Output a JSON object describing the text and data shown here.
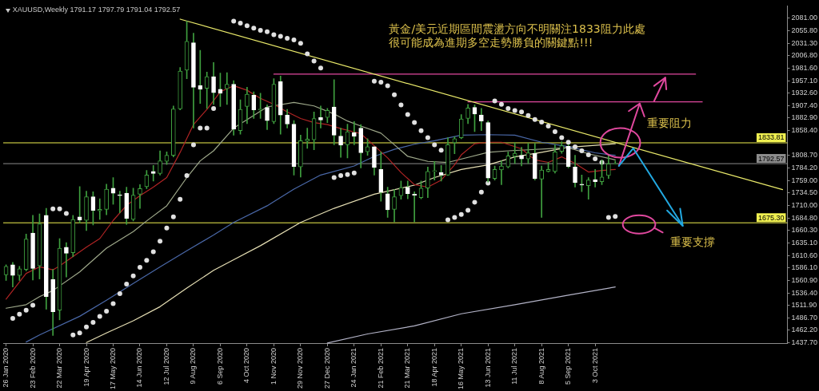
{
  "chart_data": {
    "type": "candlestick",
    "title": "XAUUSD,Weekly 1791.17 1797.79 1791.04 1792.57",
    "x": [
      "2020-01-26",
      "2020-02-02",
      "2020-02-09",
      "2020-02-16",
      "2020-02-23",
      "2020-03-01",
      "2020-03-08",
      "2020-03-15",
      "2020-03-22",
      "2020-03-29",
      "2020-04-05",
      "2020-04-12",
      "2020-04-19",
      "2020-04-26",
      "2020-05-03",
      "2020-05-10",
      "2020-05-17",
      "2020-05-24",
      "2020-05-31",
      "2020-06-07",
      "2020-06-14",
      "2020-06-21",
      "2020-06-28",
      "2020-07-05",
      "2020-07-12",
      "2020-07-19",
      "2020-07-26",
      "2020-08-02",
      "2020-08-09",
      "2020-08-16",
      "2020-08-23",
      "2020-08-30",
      "2020-09-06",
      "2020-09-13",
      "2020-09-20",
      "2020-09-27",
      "2020-10-04",
      "2020-10-11",
      "2020-10-18",
      "2020-10-25",
      "2020-11-01",
      "2020-11-08",
      "2020-11-15",
      "2020-11-22",
      "2020-11-29",
      "2020-12-06",
      "2020-12-13",
      "2020-12-20",
      "2020-12-27",
      "2021-01-03",
      "2021-01-10",
      "2021-01-17",
      "2021-01-24",
      "2021-01-31",
      "2021-02-07",
      "2021-02-14",
      "2021-02-21",
      "2021-02-28",
      "2021-03-07",
      "2021-03-14",
      "2021-03-21",
      "2021-03-28",
      "2021-04-04",
      "2021-04-11",
      "2021-04-18",
      "2021-04-25",
      "2021-05-02",
      "2021-05-09",
      "2021-05-16",
      "2021-05-23",
      "2021-05-30",
      "2021-06-06",
      "2021-06-13",
      "2021-06-20",
      "2021-06-27",
      "2021-07-04",
      "2021-07-11",
      "2021-07-18",
      "2021-07-25",
      "2021-08-01",
      "2021-08-08",
      "2021-08-15",
      "2021-08-22",
      "2021-08-29",
      "2021-09-05",
      "2021-09-12",
      "2021-09-19",
      "2021-09-26",
      "2021-10-03",
      "2021-10-10",
      "2021-10-17",
      "2021-10-24"
    ],
    "ohlc": [
      [
        1572,
        1592,
        1561,
        1589
      ],
      [
        1592,
        1597,
        1548,
        1571
      ],
      [
        1571,
        1589,
        1561,
        1584
      ],
      [
        1583,
        1653,
        1580,
        1643
      ],
      [
        1655,
        1690,
        1562,
        1585
      ],
      [
        1590,
        1693,
        1564,
        1673
      ],
      [
        1690,
        1704,
        1504,
        1529
      ],
      [
        1563,
        1583,
        1452,
        1499
      ],
      [
        1502,
        1644,
        1483,
        1625
      ],
      [
        1627,
        1636,
        1568,
        1615
      ],
      [
        1616,
        1690,
        1608,
        1682
      ],
      [
        1687,
        1747,
        1675,
        1681
      ],
      [
        1680,
        1738,
        1660,
        1727
      ],
      [
        1727,
        1737,
        1671,
        1700
      ],
      [
        1699,
        1723,
        1682,
        1702
      ],
      [
        1702,
        1752,
        1691,
        1742
      ],
      [
        1744,
        1765,
        1712,
        1734
      ],
      [
        1731,
        1738,
        1695,
        1729
      ],
      [
        1734,
        1746,
        1672,
        1684
      ],
      [
        1682,
        1744,
        1679,
        1730
      ],
      [
        1732,
        1751,
        1704,
        1743
      ],
      [
        1747,
        1779,
        1743,
        1770
      ],
      [
        1777,
        1789,
        1758,
        1773
      ],
      [
        1773,
        1818,
        1770,
        1798
      ],
      [
        1797,
        1816,
        1791,
        1809
      ],
      [
        1809,
        1907,
        1806,
        1901
      ],
      [
        1901,
        1983,
        1899,
        1976
      ],
      [
        1978,
        2075,
        1961,
        2035
      ],
      [
        2032,
        2051,
        1863,
        1944
      ],
      [
        1947,
        2017,
        1912,
        1940
      ],
      [
        1942,
        1974,
        1902,
        1965
      ],
      [
        1965,
        1993,
        1910,
        1933
      ],
      [
        1940,
        1972,
        1906,
        1932
      ],
      [
        1941,
        1973,
        1910,
        1950
      ],
      [
        1950,
        1957,
        1849,
        1861
      ],
      [
        1858,
        1919,
        1851,
        1900
      ],
      [
        1906,
        1944,
        1872,
        1930
      ],
      [
        1928,
        1935,
        1882,
        1899
      ],
      [
        1899,
        1932,
        1882,
        1901
      ],
      [
        1904,
        1909,
        1860,
        1878
      ],
      [
        1876,
        1961,
        1872,
        1950
      ],
      [
        1955,
        1966,
        1851,
        1889
      ],
      [
        1889,
        1900,
        1863,
        1871
      ],
      [
        1871,
        1878,
        1770,
        1787
      ],
      [
        1786,
        1849,
        1766,
        1838
      ],
      [
        1837,
        1863,
        1823,
        1841
      ],
      [
        1840,
        1895,
        1820,
        1882
      ],
      [
        1884,
        1907,
        1863,
        1879
      ],
      [
        1884,
        1902,
        1874,
        1898
      ],
      [
        1905,
        1959,
        1830,
        1849
      ],
      [
        1847,
        1863,
        1805,
        1829
      ],
      [
        1830,
        1871,
        1804,
        1856
      ],
      [
        1854,
        1876,
        1830,
        1847
      ],
      [
        1863,
        1870,
        1784,
        1814
      ],
      [
        1816,
        1842,
        1809,
        1826
      ],
      [
        1826,
        1826,
        1770,
        1785
      ],
      [
        1781,
        1816,
        1718,
        1736
      ],
      [
        1733,
        1746,
        1686,
        1701
      ],
      [
        1702,
        1741,
        1677,
        1727
      ],
      [
        1729,
        1758,
        1722,
        1745
      ],
      [
        1746,
        1758,
        1723,
        1733
      ],
      [
        1732,
        1737,
        1677,
        1730
      ],
      [
        1725,
        1758,
        1723,
        1744
      ],
      [
        1744,
        1786,
        1725,
        1777
      ],
      [
        1777,
        1797,
        1760,
        1778
      ],
      [
        1775,
        1789,
        1758,
        1770
      ],
      [
        1770,
        1844,
        1769,
        1830
      ],
      [
        1834,
        1846,
        1812,
        1842
      ],
      [
        1844,
        1890,
        1842,
        1881
      ],
      [
        1882,
        1910,
        1872,
        1903
      ],
      [
        1904,
        1909,
        1856,
        1891
      ],
      [
        1889,
        1902,
        1858,
        1877
      ],
      [
        1874,
        1877,
        1756,
        1764
      ],
      [
        1763,
        1788,
        1760,
        1781
      ],
      [
        1780,
        1798,
        1751,
        1788
      ],
      [
        1786,
        1816,
        1784,
        1808
      ],
      [
        1807,
        1834,
        1793,
        1813
      ],
      [
        1809,
        1825,
        1788,
        1802
      ],
      [
        1802,
        1833,
        1793,
        1814
      ],
      [
        1813,
        1833,
        1760,
        1763
      ],
      [
        1762,
        1788,
        1686,
        1780
      ],
      [
        1777,
        1795,
        1776,
        1781
      ],
      [
        1777,
        1830,
        1774,
        1816
      ],
      [
        1817,
        1836,
        1813,
        1828
      ],
      [
        1827,
        1830,
        1784,
        1787
      ],
      [
        1786,
        1809,
        1746,
        1755
      ],
      [
        1752,
        1770,
        1737,
        1750
      ],
      [
        1749,
        1765,
        1722,
        1760
      ],
      [
        1761,
        1781,
        1746,
        1757
      ],
      [
        1757,
        1800,
        1751,
        1766
      ],
      [
        1769,
        1809,
        1763,
        1792
      ],
      [
        1791.17,
        1797.79,
        1791.04,
        1792.57
      ]
    ],
    "color": "#3f9f3f",
    "colors": [
      "#3f9f3f",
      "#ffffff",
      "#3f9f3f",
      "#3f9f3f",
      "#ffffff",
      "#3f9f3f",
      "#ffffff",
      "#ffffff",
      "#3f9f3f",
      "#ffffff",
      "#3f9f3f",
      "#ffffff",
      "#3f9f3f",
      "#ffffff",
      "#3f9f3f",
      "#3f9f3f",
      "#ffffff",
      "#ffffff",
      "#ffffff",
      "#3f9f3f",
      "#3f9f3f",
      "#3f9f3f",
      "#ffffff",
      "#3f9f3f",
      "#3f9f3f",
      "#3f9f3f",
      "#3f9f3f",
      "#3f9f3f",
      "#ffffff",
      "#ffffff",
      "#3f9f3f",
      "#ffffff",
      "#ffffff",
      "#3f9f3f",
      "#ffffff",
      "#3f9f3f",
      "#3f9f3f",
      "#ffffff",
      "#3f9f3f",
      "#ffffff",
      "#3f9f3f",
      "#ffffff",
      "#ffffff",
      "#ffffff",
      "#3f9f3f",
      "#3f9f3f",
      "#3f9f3f",
      "#ffffff",
      "#3f9f3f",
      "#ffffff",
      "#ffffff",
      "#3f9f3f",
      "#ffffff",
      "#ffffff",
      "#3f9f3f",
      "#ffffff",
      "#ffffff",
      "#ffffff",
      "#3f9f3f",
      "#3f9f3f",
      "#ffffff",
      "#ffffff",
      "#3f9f3f",
      "#3f9f3f",
      "#3f9f3f",
      "#ffffff",
      "#3f9f3f",
      "#3f9f3f",
      "#3f9f3f",
      "#3f9f3f",
      "#ffffff",
      "#ffffff",
      "#ffffff",
      "#3f9f3f",
      "#3f9f3f",
      "#3f9f3f",
      "#3f9f3f",
      "#ffffff",
      "#3f9f3f",
      "#ffffff",
      "#3f9f3f",
      "#3f9f3f",
      "#3f9f3f",
      "#3f9f3f",
      "#ffffff",
      "#ffffff",
      "#ffffff",
      "#3f9f3f",
      "#ffffff",
      "#3f9f3f",
      "#3f9f3f",
      "#3f9f3f"
    ],
    "series": [
      {
        "type": "line",
        "color": "#b02424",
        "x": [
          "2020-01-26",
          "2020-02-16",
          "2020-03-01",
          "2020-03-15",
          "2020-03-22",
          "2020-04-19",
          "2020-05-03",
          "2020-05-17",
          "2020-05-31",
          "2020-06-14",
          "2020-06-28",
          "2020-07-12",
          "2020-07-26",
          "2020-08-09",
          "2020-08-23",
          "2020-09-06",
          "2020-09-20",
          "2020-10-04",
          "2020-10-18",
          "2020-11-01",
          "2020-11-15",
          "2020-11-29",
          "2020-12-13",
          "2020-12-27",
          "2021-01-10",
          "2021-01-31",
          "2021-02-14",
          "2021-02-28",
          "2021-03-14",
          "2021-03-28",
          "2021-04-11",
          "2021-04-25",
          "2021-05-09",
          "2021-05-16",
          "2021-05-30",
          "2021-06-13",
          "2021-06-27",
          "2021-07-18",
          "2021-08-01",
          "2021-08-15",
          "2021-08-29",
          "2021-09-12",
          "2021-09-26",
          "2021-10-10",
          "2021-10-24"
        ],
        "values": [
          1524,
          1575,
          1588,
          1582,
          1590,
          1627,
          1644,
          1680,
          1710,
          1729,
          1746,
          1765,
          1815,
          1870,
          1900,
          1935,
          1947,
          1938,
          1922,
          1910,
          1895,
          1882,
          1874,
          1870,
          1862,
          1852,
          1828,
          1804,
          1775,
          1751,
          1746,
          1760,
          1790,
          1810,
          1832,
          1835,
          1835,
          1822,
          1800,
          1795,
          1806,
          1793,
          1776,
          1779,
          1781
        ]
      },
      {
        "type": "line",
        "color": "#9ea88a",
        "x": [
          "2020-01-26",
          "2020-02-16",
          "2020-03-01",
          "2020-03-15",
          "2020-04-12",
          "2020-05-10",
          "2020-06-07",
          "2020-06-21",
          "2020-07-12",
          "2020-08-02",
          "2020-08-16",
          "2020-08-30",
          "2020-09-20",
          "2020-10-25",
          "2020-11-22",
          "2020-12-13",
          "2021-01-03",
          "2021-01-17",
          "2021-01-31",
          "2021-02-21",
          "2021-03-07",
          "2021-03-21",
          "2021-04-11",
          "2021-05-02",
          "2021-05-23",
          "2021-06-13",
          "2021-07-04",
          "2021-07-25",
          "2021-08-15",
          "2021-09-05",
          "2021-09-26",
          "2021-10-24"
        ],
        "values": [
          1506,
          1513,
          1529,
          1541,
          1578,
          1625,
          1658,
          1679,
          1709,
          1765,
          1798,
          1818,
          1863,
          1905,
          1914,
          1907,
          1891,
          1877,
          1867,
          1853,
          1830,
          1807,
          1797,
          1795,
          1805,
          1815,
          1818,
          1820,
          1822,
          1824,
          1812,
          1800
        ]
      },
      {
        "type": "line",
        "color": "#4a68a8",
        "x": [
          "2020-02-16",
          "2020-03-01",
          "2020-04-12",
          "2020-05-10",
          "2020-06-07",
          "2020-07-05",
          "2020-08-02",
          "2020-08-30",
          "2020-09-20",
          "2020-10-25",
          "2020-11-22",
          "2020-12-20",
          "2021-01-24",
          "2021-02-14",
          "2021-03-07",
          "2021-03-28",
          "2021-04-18",
          "2021-05-16",
          "2021-06-13",
          "2021-07-11",
          "2021-08-08",
          "2021-09-05",
          "2021-10-03",
          "2021-10-24"
        ],
        "values": [
          1439,
          1453,
          1490,
          1522,
          1555,
          1588,
          1620,
          1651,
          1676,
          1709,
          1742,
          1770,
          1788,
          1807,
          1821,
          1831,
          1838,
          1849,
          1850,
          1849,
          1835,
          1826,
          1814,
          1809
        ]
      },
      {
        "type": "line",
        "color": "#e6dfb4",
        "x": [
          "2020-04-19",
          "2020-05-10",
          "2020-06-07",
          "2020-07-05",
          "2020-08-02",
          "2020-08-30",
          "2020-09-20",
          "2020-10-18",
          "2020-11-29",
          "2021-01-03",
          "2021-02-14",
          "2021-03-28",
          "2021-04-18",
          "2021-05-16",
          "2021-06-13",
          "2021-07-11",
          "2021-08-08",
          "2021-09-05",
          "2021-10-03",
          "2021-10-24"
        ],
        "values": [
          1438,
          1457,
          1481,
          1509,
          1546,
          1581,
          1602,
          1630,
          1676,
          1704,
          1732,
          1750,
          1765,
          1781,
          1790,
          1806,
          1815,
          1825,
          1829,
          1832
        ]
      },
      {
        "type": "line",
        "color": "#b4b4c8",
        "x": [
          "2020-12-27",
          "2021-02-07",
          "2021-03-28",
          "2021-05-16",
          "2021-07-11",
          "2021-09-05",
          "2021-10-24"
        ],
        "values": [
          1437,
          1455,
          1471,
          1495,
          1513,
          1532,
          1548
        ]
      },
      {
        "type": "scatter",
        "color": "#e0e0e0",
        "marker": "circle",
        "x": [
          "2020-02-02",
          "2020-02-09",
          "2020-02-16",
          "2020-02-23",
          "2020-03-15",
          "2020-03-22",
          "2020-03-29",
          "2020-04-05",
          "2020-04-12",
          "2020-04-19",
          "2020-04-26",
          "2020-05-03",
          "2020-05-10",
          "2020-05-17",
          "2020-05-24",
          "2020-05-31",
          "2020-06-07",
          "2020-06-14",
          "2020-06-21",
          "2020-06-28",
          "2020-07-05",
          "2020-07-12",
          "2020-07-19",
          "2020-07-26",
          "2020-08-02",
          "2020-08-09",
          "2020-08-16",
          "2020-08-23",
          "2020-08-30",
          "2020-09-20",
          "2020-09-27",
          "2020-10-04",
          "2020-10-11",
          "2020-10-18",
          "2020-10-25",
          "2020-11-01",
          "2020-11-08",
          "2020-11-15",
          "2020-11-22",
          "2020-11-29",
          "2020-12-06",
          "2020-12-13",
          "2020-12-20",
          "2021-01-03",
          "2021-01-10",
          "2021-01-17",
          "2021-01-24",
          "2021-02-14",
          "2021-02-21",
          "2021-02-28",
          "2021-03-07",
          "2021-03-14",
          "2021-03-21",
          "2021-03-28",
          "2021-04-04",
          "2021-04-11",
          "2021-04-18",
          "2021-04-25",
          "2021-05-02",
          "2021-05-09",
          "2021-05-16",
          "2021-05-23",
          "2021-05-30",
          "2021-06-06",
          "2021-06-13",
          "2021-06-20",
          "2021-06-27",
          "2021-07-04",
          "2021-07-11",
          "2021-07-18",
          "2021-07-25",
          "2021-08-01",
          "2021-08-08",
          "2021-08-15",
          "2021-08-22",
          "2021-08-29",
          "2021-09-05",
          "2021-09-12",
          "2021-09-19",
          "2021-09-26",
          "2021-10-03",
          "2021-10-10",
          "2021-10-17",
          "2021-10-24"
        ],
        "values": [
          1486,
          1494,
          1502,
          1512,
          1703,
          1703,
          1694,
          1453,
          1457,
          1469,
          1478,
          1490,
          1500,
          1515,
          1535,
          1554,
          1570,
          1587,
          1601,
          1618,
          1639,
          1665,
          1687,
          1722,
          1769,
          1830,
          1863,
          1863,
          1902,
          2075,
          2071,
          2066,
          2061,
          2057,
          2054,
          2048,
          2045,
          2041,
          2038,
          2031,
          2010,
          1996,
          1982,
          1765,
          1769,
          1771,
          1774,
          1956,
          1954,
          1947,
          1929,
          1909,
          1890,
          1874,
          1858,
          1844,
          1830,
          1819,
          1681,
          1686,
          1692,
          1700,
          1716,
          1736,
          1754,
          1917,
          1910,
          1902,
          1898,
          1895,
          1888,
          1880,
          1875,
          1867,
          1856,
          1844,
          1835,
          1826,
          1818,
          1810,
          1802,
          1795,
          1686,
          1688
        ]
      },
      {
        "type": "line",
        "color": "#eaea6a",
        "x": [
          "2020-07-26",
          "2022-04-17"
        ],
        "values": [
          2079,
          1741
        ]
      },
      {
        "type": "line",
        "color": "#e0489e",
        "x": [
          "2020-11-01",
          "2022-01-16"
        ],
        "values": [
          1970,
          1970
        ]
      },
      {
        "type": "line",
        "color": "#e0489e",
        "x": [
          "2021-05-23",
          "2022-01-23"
        ],
        "values": [
          1915,
          1915
        ]
      }
    ],
    "xlim": [
      "2020-01-23",
      "2022-04-22"
    ],
    "xticks": [
      {
        "value": "2020-01-26",
        "label": "26 Jan 2020"
      },
      {
        "value": "2020-02-23",
        "label": "23 Feb 2020"
      },
      {
        "value": "2020-03-22",
        "label": "22 Mar 2020"
      },
      {
        "value": "2020-04-19",
        "label": "19 Apr 2020"
      },
      {
        "value": "2020-05-17",
        "label": "17 May 2020"
      },
      {
        "value": "2020-06-14",
        "label": "14 Jun 2020"
      },
      {
        "value": "2020-07-12",
        "label": "12 Jul 2020"
      },
      {
        "value": "2020-08-09",
        "label": "9 Aug 2020"
      },
      {
        "value": "2020-09-06",
        "label": "6 Sep 2020"
      },
      {
        "value": "2020-10-04",
        "label": "4 Oct 2020"
      },
      {
        "value": "2020-11-01",
        "label": "1 Nov 2020"
      },
      {
        "value": "2020-11-29",
        "label": "29 Nov 2020"
      },
      {
        "value": "2020-12-27",
        "label": "27 Dec 2020"
      },
      {
        "value": "2021-01-24",
        "label": "24 Jan 2021"
      },
      {
        "value": "2021-02-21",
        "label": "21 Feb 2021"
      },
      {
        "value": "2021-03-21",
        "label": "21 Mar 2021"
      },
      {
        "value": "2021-04-18",
        "label": "18 Apr 2021"
      },
      {
        "value": "2021-05-16",
        "label": "16 May 2021"
      },
      {
        "value": "2021-06-13",
        "label": "13 Jun 2021"
      },
      {
        "value": "2021-07-11",
        "label": "11 Jul 2021"
      },
      {
        "value": "2021-08-08",
        "label": "8 Aug 2021"
      },
      {
        "value": "2021-09-05",
        "label": "5 Sep 2021"
      },
      {
        "value": "2021-10-03",
        "label": "3 Oct 2021"
      }
    ],
    "ylim": [
      1435.3,
      2105.2
    ],
    "yticks": [
      {
        "value": 2081,
        "label": "2081.00"
      },
      {
        "value": 2055.8,
        "label": "2055.80"
      },
      {
        "value": 2031.3,
        "label": "2031.30"
      },
      {
        "value": 2006.8,
        "label": "2006.80"
      },
      {
        "value": 1981.6,
        "label": "1981.60"
      },
      {
        "value": 1957.1,
        "label": "1957.10"
      },
      {
        "value": 1932.6,
        "label": "1932.60"
      },
      {
        "value": 1907.4,
        "label": "1907.40"
      },
      {
        "value": 1882.9,
        "label": "1882.90"
      },
      {
        "value": 1858.4,
        "label": "1858.40"
      },
      {
        "value": 1808.7,
        "label": "1808.70"
      },
      {
        "value": 1784.2,
        "label": "1784.20"
      },
      {
        "value": 1759,
        "label": "1759.00"
      },
      {
        "value": 1734.5,
        "label": "1734.50"
      },
      {
        "value": 1710,
        "label": "1710.00"
      },
      {
        "value": 1684.8,
        "label": "1684.80"
      },
      {
        "value": 1660.3,
        "label": "1660.30"
      },
      {
        "value": 1635.1,
        "label": "1635.10"
      },
      {
        "value": 1610.6,
        "label": "1610.60"
      },
      {
        "value": 1586.1,
        "label": "1586.10"
      },
      {
        "value": 1560.9,
        "label": "1560.90"
      },
      {
        "value": 1536.4,
        "label": "1536.40"
      },
      {
        "value": 1511.9,
        "label": "1511.90"
      },
      {
        "value": 1486.7,
        "label": "1486.70"
      },
      {
        "value": 1462.2,
        "label": "1462.20"
      },
      {
        "value": 1437.7,
        "label": "1437.70"
      }
    ],
    "ref_lines": [
      {
        "axis": "y",
        "value": 1833.81,
        "label": "1833.81",
        "color": "#f0f050"
      },
      {
        "axis": "y",
        "value": 1792.57,
        "label": "1792.57",
        "color": "#8c8c8c"
      },
      {
        "axis": "y",
        "value": 1675.3,
        "label": "1675.30",
        "color": "#f0f050"
      }
    ],
    "annotations": [
      "黃金/美元近期區間震盪方向不明關注1833阻力此處",
      "很可能成為進期多空走勢勝負的關鍵點!!!",
      "重要阻力",
      {
        "text": "重要支撐",
        "x": "2022-01-02",
        "y": 1675.3
      }
    ]
  }
}
